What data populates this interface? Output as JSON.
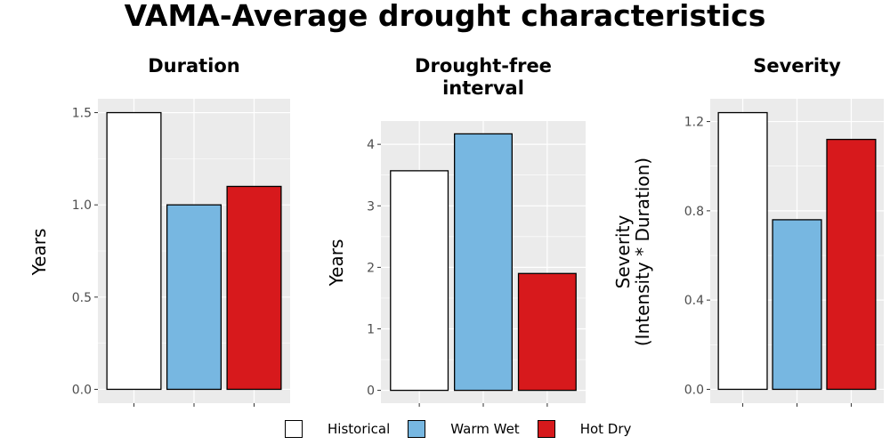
{
  "title": "VAMA-Average drought characteristics",
  "colors": {
    "panel_bg": "#ebebeb",
    "grid": "#ffffff",
    "tick_text": "#4d4d4d"
  },
  "chart_data": [
    {
      "type": "bar",
      "title": "Duration",
      "ylabel": "Years",
      "categories": [
        "Historical",
        "Warm Wet",
        "Hot Dry"
      ],
      "values": [
        1.5,
        1.0,
        1.1
      ],
      "ylim": [
        0,
        1.5
      ],
      "yticks": [
        0.0,
        0.5,
        1.0,
        1.5
      ],
      "ytick_labels": [
        "0.0",
        "0.5",
        "1.0",
        "1.5"
      ],
      "grid": true
    },
    {
      "type": "bar",
      "title": "Drought-free\ninterval",
      "ylabel": "Years",
      "categories": [
        "Historical",
        "Warm Wet",
        "Hot Dry"
      ],
      "values": [
        3.57,
        4.17,
        1.9
      ],
      "ylim": [
        0,
        4.17
      ],
      "yticks": [
        0,
        1,
        2,
        3,
        4
      ],
      "ytick_labels": [
        "0",
        "1",
        "2",
        "3",
        "4"
      ],
      "grid": true
    },
    {
      "type": "bar",
      "title": "Severity",
      "ylabel": "Severity\n(Intensity * Duration)",
      "categories": [
        "Historical",
        "Warm Wet",
        "Hot Dry"
      ],
      "values": [
        1.24,
        0.76,
        1.12
      ],
      "ylim": [
        0,
        1.24
      ],
      "yticks": [
        0.0,
        0.4,
        0.8,
        1.2
      ],
      "ytick_labels": [
        "0.0",
        "0.4",
        "0.8",
        "1.2"
      ],
      "grid": true
    }
  ],
  "legend": {
    "placement": "bottom",
    "items": [
      {
        "label": "Historical",
        "color": "#ffffff"
      },
      {
        "label": "Warm Wet",
        "color": "#77b7e1"
      },
      {
        "label": "Hot Dry",
        "color": "#d7191c"
      }
    ]
  }
}
